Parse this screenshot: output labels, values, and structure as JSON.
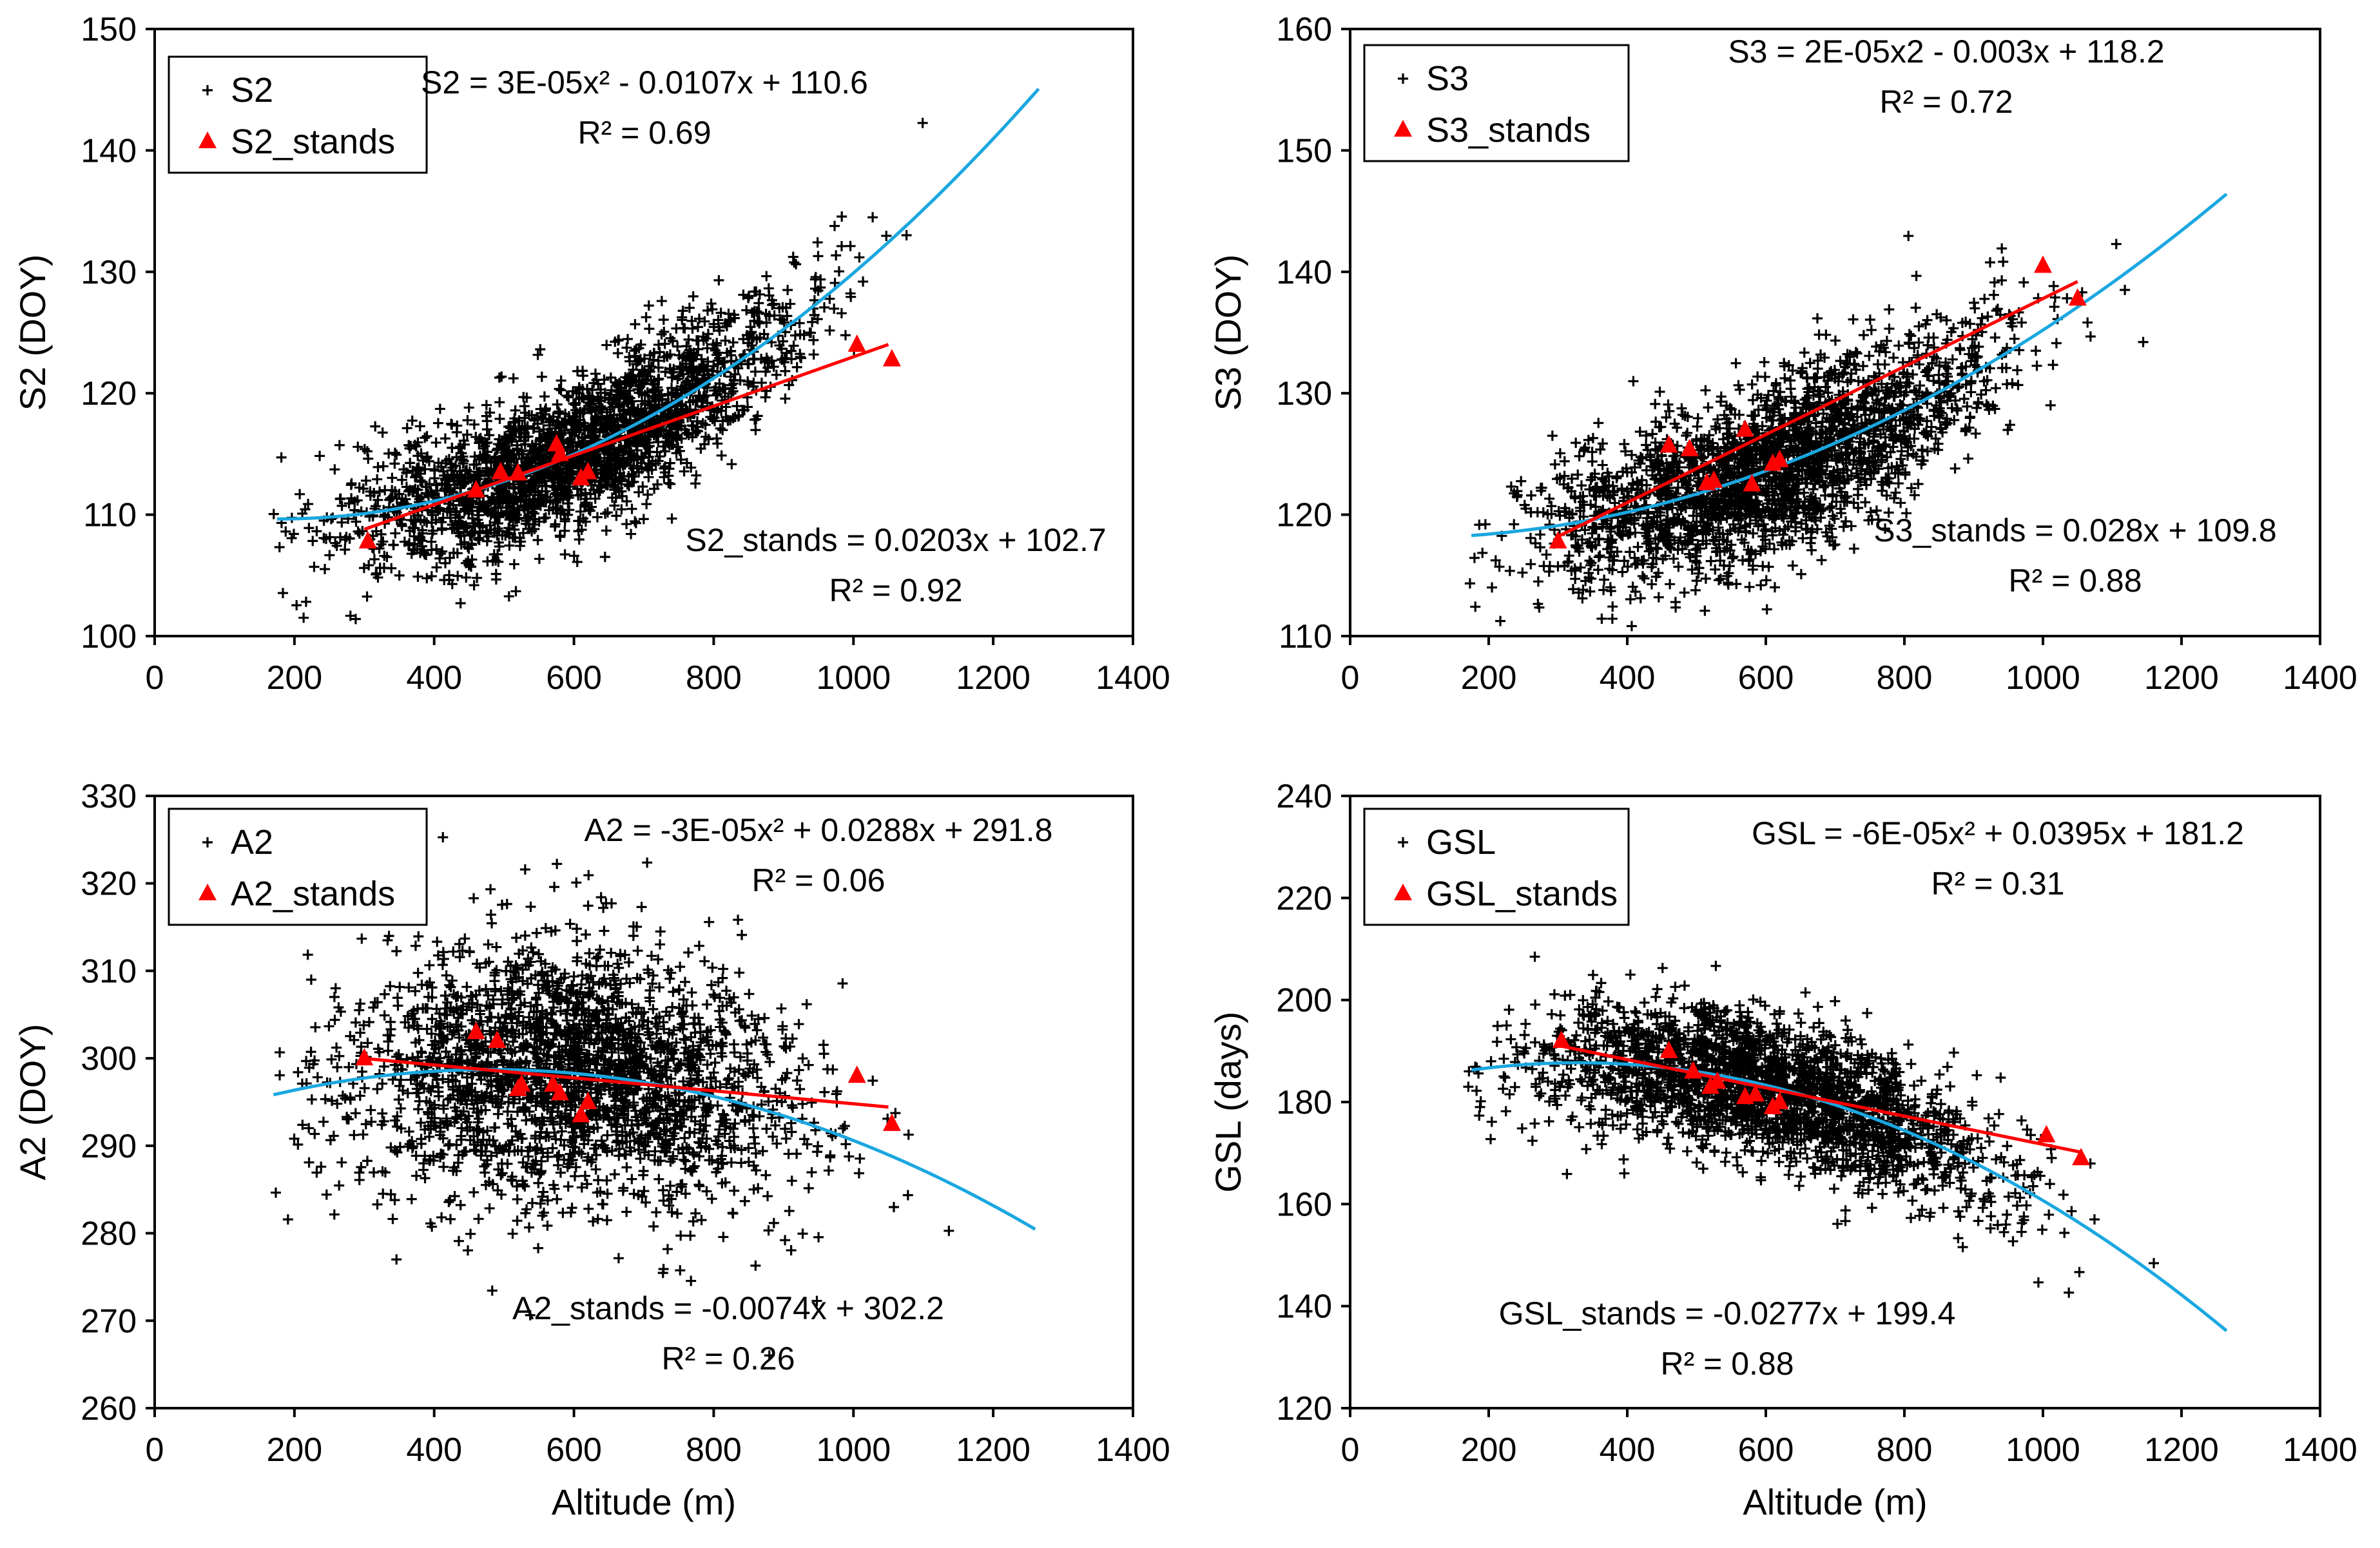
{
  "colors": {
    "fit_poly": "#1aa7e0",
    "fit_lin": "#ff0000",
    "stands": "#ff0000",
    "points": "#000000"
  },
  "chart_data": [
    {
      "type": "scatter",
      "title": "",
      "xlabel": "",
      "ylabel": "S2 (DOY)",
      "xlim": [
        0,
        1400
      ],
      "ylim": [
        100,
        150
      ],
      "xticks": [
        "0",
        "200",
        "400",
        "600",
        "800",
        "1000",
        "1200",
        "1400"
      ],
      "yticks": [
        "100",
        "110",
        "120",
        "130",
        "140",
        "150"
      ],
      "legend": [
        "S2",
        "S2_stands"
      ],
      "eq_poly": "S2 = 3E-05x² - 0.0107x + 110.6",
      "r2_poly": "R² = 0.69",
      "eq_lin": "S2_stands = 0.0203x + 102.7",
      "r2_lin": "R² = 0.92",
      "poly": [
        3e-05,
        -0.0107,
        110.6
      ],
      "lin": [
        0.0203,
        102.7
      ],
      "poly_range": [
        175,
        1265
      ],
      "lin_range": [
        300,
        1050
      ],
      "cloud": {
        "x_mean": 600,
        "x_sd": 160,
        "x_min": 170,
        "x_max": 1270,
        "y_sd": 3.0,
        "n": 2400
      },
      "stands": [
        {
          "x": 305,
          "y": 107.8
        },
        {
          "x": 460,
          "y": 112.0
        },
        {
          "x": 495,
          "y": 113.5
        },
        {
          "x": 520,
          "y": 113.4
        },
        {
          "x": 575,
          "y": 115.8
        },
        {
          "x": 580,
          "y": 115.0
        },
        {
          "x": 610,
          "y": 113.0
        },
        {
          "x": 620,
          "y": 113.5
        },
        {
          "x": 1005,
          "y": 124.0
        },
        {
          "x": 1055,
          "y": 122.8
        }
      ]
    },
    {
      "type": "scatter",
      "title": "",
      "xlabel": "",
      "ylabel": "S3 (DOY)",
      "xlim": [
        0,
        1400
      ],
      "ylim": [
        110,
        160
      ],
      "xticks": [
        "0",
        "200",
        "400",
        "600",
        "800",
        "1000",
        "1200",
        "1400"
      ],
      "yticks": [
        "110",
        "120",
        "130",
        "140",
        "150",
        "160"
      ],
      "legend": [
        "S3",
        "S3_stands"
      ],
      "eq_poly": "S3 = 2E-05x2 - 0.003x + 118.2",
      "r2_poly": "R² = 0.72",
      "eq_lin": "S3_stands = 0.028x + 109.8",
      "r2_lin": "R² = 0.88",
      "poly": [
        2e-05,
        -0.003,
        118.2
      ],
      "lin": [
        0.028,
        109.8
      ],
      "poly_range": [
        175,
        1270
      ],
      "lin_range": [
        300,
        1050
      ],
      "cloud": {
        "x_mean": 600,
        "x_sd": 160,
        "x_min": 170,
        "x_max": 1270,
        "y_sd": 3.4,
        "n": 2400
      },
      "stands": [
        {
          "x": 300,
          "y": 117.8
        },
        {
          "x": 460,
          "y": 125.7
        },
        {
          "x": 490,
          "y": 125.4
        },
        {
          "x": 515,
          "y": 122.6
        },
        {
          "x": 525,
          "y": 122.8
        },
        {
          "x": 570,
          "y": 127.0
        },
        {
          "x": 580,
          "y": 122.5
        },
        {
          "x": 610,
          "y": 124.2
        },
        {
          "x": 620,
          "y": 124.5
        },
        {
          "x": 1000,
          "y": 140.5
        },
        {
          "x": 1050,
          "y": 137.8
        }
      ]
    },
    {
      "type": "scatter",
      "title": "",
      "xlabel": "",
      "ylabel": "A2 (DOY)",
      "xlim": [
        0,
        1400
      ],
      "ylim": [
        260,
        330
      ],
      "xticks": [
        "0",
        "200",
        "400",
        "600",
        "800",
        "1000",
        "1200",
        "1400"
      ],
      "yticks": [
        "260",
        "270",
        "280",
        "290",
        "300",
        "310",
        "320",
        "330"
      ],
      "legend": [
        "A2",
        "A2_stands"
      ],
      "eq_poly": "A2 = -3E-05x² + 0.0288x + 291.8",
      "r2_poly": "R² = 0.06",
      "eq_lin": "A2_stands = -0.0074x + 302.2",
      "r2_lin": "R² = 0.26",
      "poly": [
        -3e-05,
        0.0288,
        291.8
      ],
      "lin": [
        -0.0074,
        302.2
      ],
      "poly_range": [
        170,
        1265
      ],
      "lin_range": [
        300,
        1050
      ],
      "cloud": {
        "x_mean": 600,
        "x_sd": 160,
        "x_min": 170,
        "x_max": 1270,
        "y_sd": 7.5,
        "n": 2400
      },
      "stands": [
        {
          "x": 300,
          "y": 300.0
        },
        {
          "x": 460,
          "y": 303.0
        },
        {
          "x": 490,
          "y": 302.0
        },
        {
          "x": 520,
          "y": 296.5
        },
        {
          "x": 525,
          "y": 297.0
        },
        {
          "x": 570,
          "y": 297.0
        },
        {
          "x": 580,
          "y": 296.0
        },
        {
          "x": 610,
          "y": 293.5
        },
        {
          "x": 620,
          "y": 295.0
        },
        {
          "x": 1005,
          "y": 298.0
        },
        {
          "x": 1055,
          "y": 292.5
        }
      ]
    },
    {
      "type": "scatter",
      "title": "",
      "xlabel": "Altitude (m)",
      "ylabel": "GSL (days)",
      "xlim": [
        0,
        1400
      ],
      "ylim": [
        120,
        240
      ],
      "xticks": [
        "0",
        "200",
        "400",
        "600",
        "800",
        "1000",
        "1200",
        "1400"
      ],
      "yticks": [
        "120",
        "140",
        "160",
        "180",
        "200",
        "220",
        "240"
      ],
      "legend": [
        "GSL",
        "GSL_stands"
      ],
      "eq_poly": "GSL = -6E-05x² + 0.0395x + 181.2",
      "r2_poly": "R² = 0.31",
      "eq_lin": "GSL_stands = -0.0277x + 199.4",
      "r2_lin": "R² = 0.88",
      "poly": [
        -6e-05,
        0.0395,
        181.2
      ],
      "lin": [
        -0.0277,
        199.4
      ],
      "poly_range": [
        175,
        1270
      ],
      "lin_range": [
        300,
        1055
      ],
      "cloud": {
        "x_mean": 600,
        "x_sd": 160,
        "x_min": 170,
        "x_max": 1270,
        "y_sd": 7.0,
        "n": 2400
      },
      "stands": [
        {
          "x": 305,
          "y": 192.0
        },
        {
          "x": 460,
          "y": 190.0
        },
        {
          "x": 495,
          "y": 186.0
        },
        {
          "x": 520,
          "y": 183.0
        },
        {
          "x": 530,
          "y": 184.0
        },
        {
          "x": 570,
          "y": 181.0
        },
        {
          "x": 585,
          "y": 181.5
        },
        {
          "x": 610,
          "y": 179.0
        },
        {
          "x": 620,
          "y": 180.0
        },
        {
          "x": 1005,
          "y": 173.5
        },
        {
          "x": 1055,
          "y": 169.0
        }
      ]
    }
  ],
  "x_axis_label": "Altitude (m)"
}
